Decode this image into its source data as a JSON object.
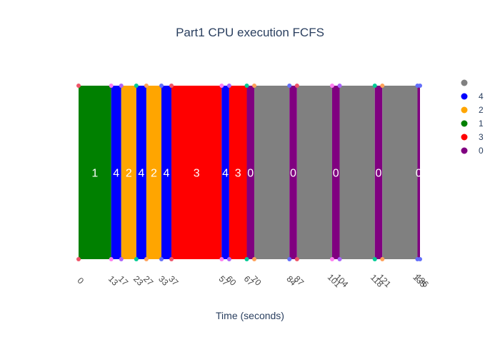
{
  "chart_data": {
    "type": "bar",
    "title": "Part1 CPU execution FCFS",
    "xlabel": "Time (seconds)",
    "xlim": [
      0,
      136
    ],
    "colors": {
      "idle": "#808080",
      "p4": "#0000ff",
      "p2": "#ffa500",
      "p1": "#008000",
      "p3": "#ff0000",
      "p0": "#800080"
    },
    "legend": {
      "placement": "right",
      "entries": [
        {
          "name": "",
          "color": "#808080"
        },
        {
          "name": "4",
          "color": "#0000ff"
        },
        {
          "name": "2",
          "color": "#ffa500"
        },
        {
          "name": "1",
          "color": "#008000"
        },
        {
          "name": "3",
          "color": "#ff0000"
        },
        {
          "name": "0",
          "color": "#800080"
        }
      ]
    },
    "segments": [
      {
        "label": "1",
        "start": 0,
        "end": 13,
        "color": "#008000"
      },
      {
        "label": "4",
        "start": 13,
        "end": 17,
        "color": "#0000ff"
      },
      {
        "label": "2",
        "start": 17,
        "end": 23,
        "color": "#ffa500"
      },
      {
        "label": "4",
        "start": 23,
        "end": 27,
        "color": "#0000ff"
      },
      {
        "label": "2",
        "start": 27,
        "end": 33,
        "color": "#ffa500"
      },
      {
        "label": "4",
        "start": 33,
        "end": 37,
        "color": "#0000ff"
      },
      {
        "label": "3",
        "start": 37,
        "end": 57,
        "color": "#ff0000"
      },
      {
        "label": "4",
        "start": 57,
        "end": 60,
        "color": "#0000ff"
      },
      {
        "label": "3",
        "start": 60,
        "end": 67,
        "color": "#ff0000"
      },
      {
        "label": "0",
        "start": 67,
        "end": 70,
        "color": "#800080"
      },
      {
        "label": "",
        "start": 70,
        "end": 84,
        "color": "#808080"
      },
      {
        "label": "0",
        "start": 84,
        "end": 87,
        "color": "#800080"
      },
      {
        "label": "",
        "start": 87,
        "end": 101,
        "color": "#808080"
      },
      {
        "label": "0",
        "start": 101,
        "end": 104,
        "color": "#800080"
      },
      {
        "label": "",
        "start": 104,
        "end": 118,
        "color": "#808080"
      },
      {
        "label": "0",
        "start": 118,
        "end": 121,
        "color": "#800080"
      },
      {
        "label": "",
        "start": 121,
        "end": 135,
        "color": "#808080"
      },
      {
        "label": "0",
        "start": 135,
        "end": 136,
        "color": "#800080"
      }
    ],
    "ticks": [
      0,
      13,
      17,
      23,
      27,
      33,
      37,
      57,
      60,
      67,
      70,
      84,
      87,
      101,
      104,
      118,
      121,
      135,
      136
    ]
  }
}
